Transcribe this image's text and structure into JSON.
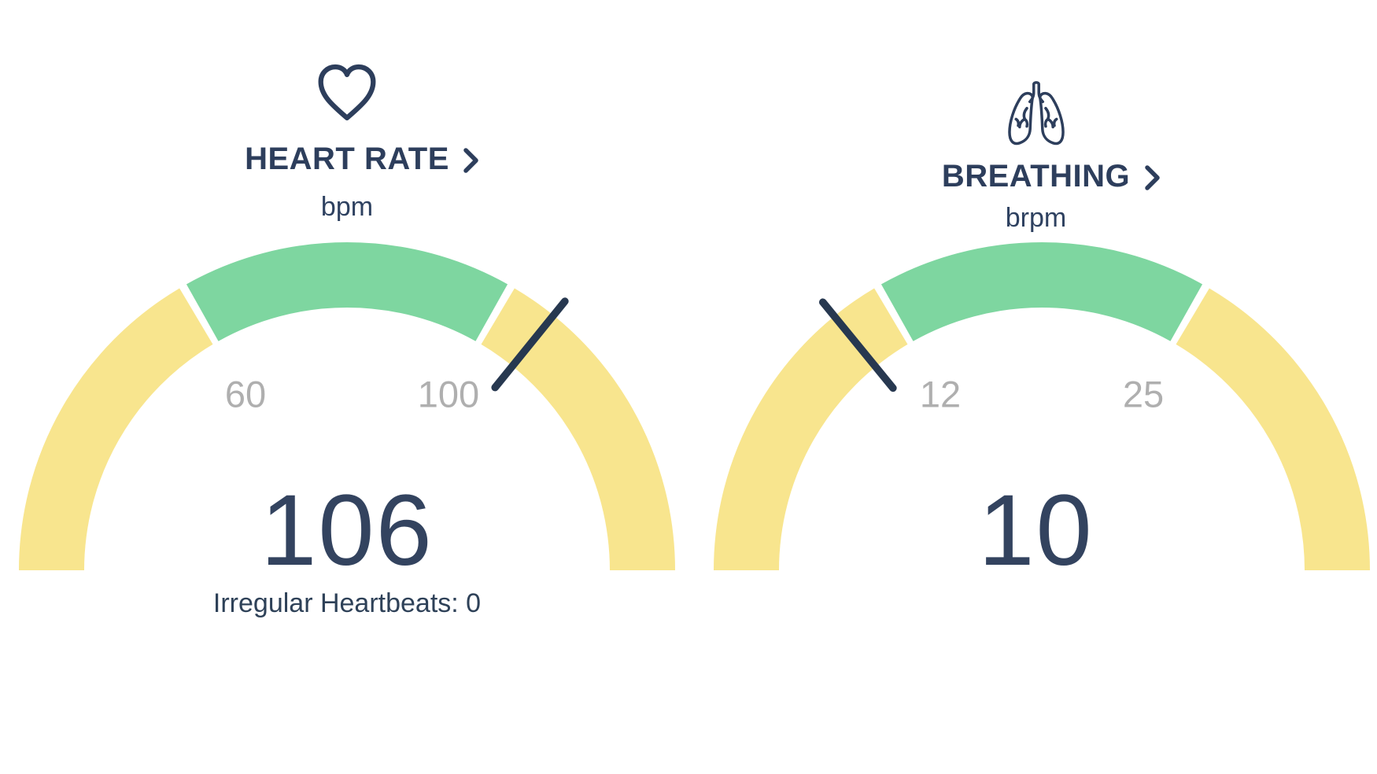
{
  "page": {
    "background": "#FFFFFF"
  },
  "colors": {
    "accent_navy": "#2D3E5C",
    "value_navy": "#33435F",
    "needle_navy": "#273850",
    "zone_yellow": "#F8E58E",
    "zone_green": "#7ED6A0",
    "tick_gray": "#AFAFAF",
    "background": "#FFFFFF"
  },
  "chart_data": [
    {
      "type": "gauge",
      "widget": "heart-rate",
      "icon": "heart-outline-icon",
      "title": "HEART RATE",
      "chevron_icon": "chevron-right-icon",
      "unit": "bpm",
      "value": 106,
      "value_display": "106",
      "footnote": "Irregular Heartbeats: 0",
      "scale_min": 20,
      "scale_max": 140,
      "arc_span_degrees": 180,
      "zones": [
        {
          "name": "below-normal",
          "from": 20,
          "to": 60,
          "color": "#F8E58E"
        },
        {
          "name": "normal",
          "from": 60,
          "to": 100,
          "color": "#7ED6A0"
        },
        {
          "name": "above-normal",
          "from": 100,
          "to": 140,
          "color": "#F8E58E"
        }
      ],
      "tick_labels": [
        {
          "text": "60",
          "value": 60
        },
        {
          "text": "100",
          "value": 100
        }
      ],
      "needle_value": 106,
      "needle_color": "#273850",
      "tick_color": "#AFAFAF"
    },
    {
      "type": "gauge",
      "widget": "breathing",
      "icon": "lungs-icon",
      "title": "BREATHING",
      "chevron_icon": "chevron-right-icon",
      "unit": "brpm",
      "value": 10,
      "value_display": "10",
      "scale_min": -1,
      "scale_max": 38,
      "arc_span_degrees": 180,
      "zones": [
        {
          "name": "below-normal",
          "from": -1,
          "to": 12,
          "color": "#F8E58E"
        },
        {
          "name": "normal",
          "from": 12,
          "to": 25,
          "color": "#7ED6A0"
        },
        {
          "name": "above-normal",
          "from": 25,
          "to": 38,
          "color": "#F8E58E"
        }
      ],
      "tick_labels": [
        {
          "text": "12",
          "value": 12
        },
        {
          "text": "25",
          "value": 25
        }
      ],
      "needle_value": 10,
      "needle_color": "#273850",
      "tick_color": "#AFAFAF"
    }
  ]
}
